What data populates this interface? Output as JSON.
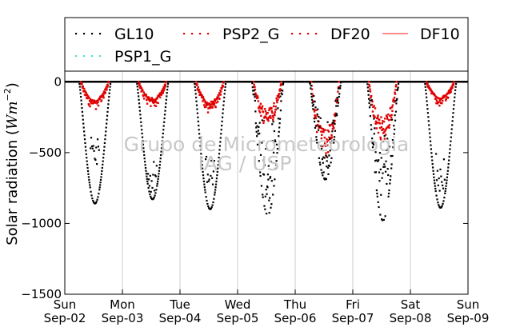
{
  "chart_data": {
    "type": "scatter",
    "title": "",
    "ylabel": "Solar radiation (W m^-2)",
    "ylabel_parts": {
      "main": "Solar radiation (",
      "unit": "Wm",
      "exp": "−2",
      "close": ")"
    },
    "xlabel": "",
    "ylim": [
      -1500,
      60
    ],
    "yticks": [
      0,
      -500,
      -1000,
      -1500
    ],
    "ytick_labels": [
      "0",
      "−500",
      "−1000",
      "−1500"
    ],
    "xlim": [
      0,
      7
    ],
    "xticks": [
      0,
      1,
      2,
      3,
      4,
      5,
      6,
      7
    ],
    "xtick_labels": [
      [
        "Sun",
        "Sep-02"
      ],
      [
        "Mon",
        "Sep-03"
      ],
      [
        "Tue",
        "Sep-04"
      ],
      [
        "Wed",
        "Sep-05"
      ],
      [
        "Thu",
        "Sep-06"
      ],
      [
        "Fri",
        "Sep-07"
      ],
      [
        "Sat",
        "Sep-08"
      ],
      [
        "Sun",
        "Sep-09"
      ]
    ],
    "grid": "vertical",
    "legend_position": "top",
    "watermark": [
      "Grupo de Micrometeorologia",
      "IAG / USP"
    ],
    "series": [
      {
        "name": "GL10",
        "marker": "dot",
        "color": "#000000",
        "daily_peak": [
          -860,
          -830,
          -900,
          -940,
          -690,
          -980,
          -890
        ],
        "daily_min_noon": [
          -600,
          -790,
          -760,
          -850,
          -690,
          -700,
          -800
        ]
      },
      {
        "name": "PSP1_G",
        "marker": "dot",
        "color": "#40e0d0",
        "daily_peak": []
      },
      {
        "name": "PSP2_G",
        "marker": "dot",
        "color": "#e00000",
        "daily_peak": []
      },
      {
        "name": "DF20",
        "marker": "dot",
        "color": "#e00000",
        "daily_peak": [
          -200,
          -190,
          -230,
          -320,
          -540,
          -420,
          -170
        ]
      },
      {
        "name": "DF10",
        "marker": "line",
        "color": "#ff6666",
        "daily_peak": []
      }
    ],
    "legend": [
      {
        "label": "GL10",
        "style": "dots-black"
      },
      {
        "label": "PSP2_G",
        "style": "dots-red"
      },
      {
        "label": "DF20",
        "style": "dots-red"
      },
      {
        "label": "DF10",
        "style": "line-red"
      },
      {
        "label": "PSP1_G",
        "style": "dots-cyan"
      }
    ]
  }
}
